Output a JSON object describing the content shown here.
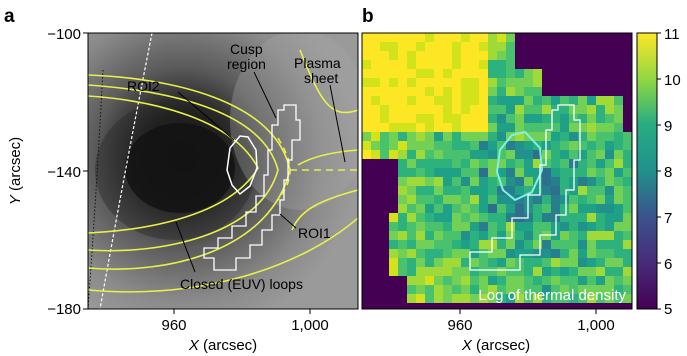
{
  "panel_a": {
    "letter": "a",
    "y_ticks": [
      "−100",
      "−140",
      "−180"
    ],
    "x_ticks": [
      "960",
      "1,000"
    ],
    "x_label_var": "X",
    "x_label_unit": " (arcsec)",
    "y_label_var": "Y",
    "y_label_unit": " (arcsec)",
    "annotations": {
      "roi2": "ROI2",
      "cusp_line1": "Cusp",
      "cusp_line2": "region",
      "plasma_line1": "Plasma",
      "plasma_line2": "sheet",
      "roi1": "ROI1",
      "loops": "Closed (EUV) loops"
    },
    "colors": {
      "field_lines": "#e8f04a",
      "roi_outline": "#ffffff"
    }
  },
  "panel_b": {
    "letter": "b",
    "x_ticks": [
      "960",
      "1,000"
    ],
    "x_label_var": "X",
    "x_label_unit": " (arcsec)",
    "inset_label": "Log of thermal density",
    "colorbar_ticks": [
      "11",
      "10",
      "9",
      "8",
      "7",
      "6",
      "5"
    ],
    "colormap": "viridis"
  }
}
